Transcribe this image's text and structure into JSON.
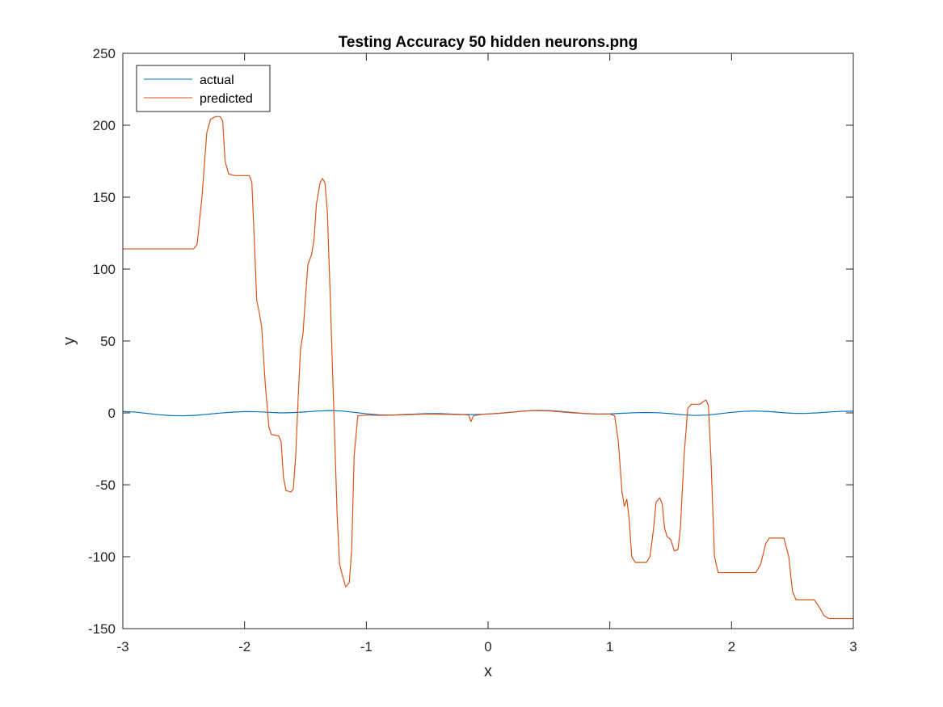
{
  "chart_data": {
    "type": "line",
    "title": "Testing Accuracy 50 hidden neurons.png",
    "xlabel": "x",
    "ylabel": "y",
    "xlim": [
      -3,
      3
    ],
    "ylim": [
      -150,
      250
    ],
    "xticks": [
      -3,
      -2,
      -1,
      0,
      1,
      2,
      3
    ],
    "yticks": [
      -150,
      -100,
      -50,
      0,
      50,
      100,
      150,
      200,
      250
    ],
    "grid": false,
    "legend_position": "top-left",
    "series": [
      {
        "name": "actual",
        "color": "#0072BD",
        "points": [
          [
            -3.0,
            0.99
          ],
          [
            -2.9,
            0.6
          ],
          [
            -2.8,
            -0.4
          ],
          [
            -2.7,
            -1.3
          ],
          [
            -2.6,
            -1.9
          ],
          [
            -2.5,
            -2.0
          ],
          [
            -2.4,
            -1.7
          ],
          [
            -2.3,
            -0.9
          ],
          [
            -2.2,
            -0.1
          ],
          [
            -2.1,
            0.5
          ],
          [
            -2.0,
            0.9
          ],
          [
            -1.9,
            0.8
          ],
          [
            -1.8,
            0.4
          ],
          [
            -1.7,
            0.0
          ],
          [
            -1.6,
            0.2
          ],
          [
            -1.5,
            0.7
          ],
          [
            -1.4,
            1.3
          ],
          [
            -1.3,
            1.6
          ],
          [
            -1.2,
            1.3
          ],
          [
            -1.1,
            0.4
          ],
          [
            -1.0,
            -0.6
          ],
          [
            -0.9,
            -1.3
          ],
          [
            -0.8,
            -1.5
          ],
          [
            -0.7,
            -1.2
          ],
          [
            -0.6,
            -0.8
          ],
          [
            -0.5,
            -0.5
          ],
          [
            -0.4,
            -0.5
          ],
          [
            -0.3,
            -0.8
          ],
          [
            -0.2,
            -1.1
          ],
          [
            -0.1,
            -1.1
          ],
          [
            0.0,
            -0.8
          ],
          [
            0.1,
            -0.2
          ],
          [
            0.2,
            0.6
          ],
          [
            0.3,
            1.3
          ],
          [
            0.4,
            1.7
          ],
          [
            0.5,
            1.6
          ],
          [
            0.6,
            1.0
          ],
          [
            0.7,
            0.2
          ],
          [
            0.8,
            -0.5
          ],
          [
            0.9,
            -0.8
          ],
          [
            1.0,
            -0.7
          ],
          [
            1.1,
            -0.3
          ],
          [
            1.2,
            0.1
          ],
          [
            1.3,
            0.3
          ],
          [
            1.4,
            0.1
          ],
          [
            1.5,
            -0.5
          ],
          [
            1.6,
            -1.3
          ],
          [
            1.7,
            -1.8
          ],
          [
            1.8,
            -1.5
          ],
          [
            1.9,
            -0.6
          ],
          [
            2.0,
            0.4
          ],
          [
            2.1,
            1.1
          ],
          [
            2.2,
            1.3
          ],
          [
            2.3,
            1.0
          ],
          [
            2.4,
            0.3
          ],
          [
            2.5,
            -0.3
          ],
          [
            2.6,
            -0.4
          ],
          [
            2.7,
            0.0
          ],
          [
            2.8,
            0.6
          ],
          [
            2.9,
            1.1
          ],
          [
            3.0,
            1.2
          ]
        ]
      },
      {
        "name": "predicted",
        "color": "#D95319",
        "points": [
          [
            -3.0,
            114
          ],
          [
            -2.42,
            114
          ],
          [
            -2.39,
            117
          ],
          [
            -2.35,
            150
          ],
          [
            -2.31,
            195
          ],
          [
            -2.28,
            204
          ],
          [
            -2.24,
            206
          ],
          [
            -2.2,
            206
          ],
          [
            -2.18,
            203
          ],
          [
            -2.16,
            175
          ],
          [
            -2.13,
            166
          ],
          [
            -2.08,
            165
          ],
          [
            -1.96,
            165
          ],
          [
            -1.94,
            160
          ],
          [
            -1.92,
            120
          ],
          [
            -1.9,
            78
          ],
          [
            -1.88,
            70
          ],
          [
            -1.86,
            60
          ],
          [
            -1.83,
            20
          ],
          [
            -1.8,
            -10
          ],
          [
            -1.78,
            -15
          ],
          [
            -1.72,
            -16
          ],
          [
            -1.7,
            -20
          ],
          [
            -1.68,
            -45
          ],
          [
            -1.66,
            -54
          ],
          [
            -1.62,
            -55
          ],
          [
            -1.6,
            -53
          ],
          [
            -1.58,
            -30
          ],
          [
            -1.56,
            10
          ],
          [
            -1.54,
            45
          ],
          [
            -1.52,
            55
          ],
          [
            -1.5,
            80
          ],
          [
            -1.48,
            103
          ],
          [
            -1.45,
            110
          ],
          [
            -1.43,
            120
          ],
          [
            -1.41,
            145
          ],
          [
            -1.38,
            160
          ],
          [
            -1.36,
            163
          ],
          [
            -1.34,
            160
          ],
          [
            -1.32,
            140
          ],
          [
            -1.3,
            90
          ],
          [
            -1.27,
            10
          ],
          [
            -1.24,
            -70
          ],
          [
            -1.22,
            -105
          ],
          [
            -1.19,
            -115
          ],
          [
            -1.17,
            -121
          ],
          [
            -1.14,
            -118
          ],
          [
            -1.12,
            -95
          ],
          [
            -1.1,
            -30
          ],
          [
            -1.07,
            -2
          ],
          [
            -1.0,
            -1.5
          ],
          [
            -0.9,
            -1.7
          ],
          [
            -0.7,
            -1.4
          ],
          [
            -0.5,
            -0.8
          ],
          [
            -0.2,
            -1.2
          ],
          [
            -0.16,
            -1.5
          ],
          [
            -0.14,
            -6
          ],
          [
            -0.12,
            -2
          ],
          [
            -0.05,
            -1
          ],
          [
            0.1,
            -0.3
          ],
          [
            0.3,
            1.3
          ],
          [
            0.4,
            1.7
          ],
          [
            0.5,
            1.4
          ],
          [
            0.7,
            0.0
          ],
          [
            0.9,
            -0.8
          ],
          [
            1.0,
            -0.8
          ],
          [
            1.04,
            -2
          ],
          [
            1.07,
            -20
          ],
          [
            1.1,
            -55
          ],
          [
            1.12,
            -65
          ],
          [
            1.14,
            -60
          ],
          [
            1.16,
            -75
          ],
          [
            1.18,
            -100
          ],
          [
            1.21,
            -104
          ],
          [
            1.3,
            -104
          ],
          [
            1.33,
            -100
          ],
          [
            1.36,
            -80
          ],
          [
            1.38,
            -62
          ],
          [
            1.41,
            -59
          ],
          [
            1.43,
            -63
          ],
          [
            1.45,
            -80
          ],
          [
            1.47,
            -86
          ],
          [
            1.5,
            -88
          ],
          [
            1.53,
            -96
          ],
          [
            1.56,
            -95
          ],
          [
            1.58,
            -80
          ],
          [
            1.61,
            -30
          ],
          [
            1.64,
            3
          ],
          [
            1.67,
            6
          ],
          [
            1.74,
            6
          ],
          [
            1.77,
            8
          ],
          [
            1.79,
            9
          ],
          [
            1.81,
            5
          ],
          [
            1.83,
            -30
          ],
          [
            1.86,
            -100
          ],
          [
            1.89,
            -111
          ],
          [
            2.2,
            -111
          ],
          [
            2.24,
            -105
          ],
          [
            2.28,
            -91
          ],
          [
            2.31,
            -87
          ],
          [
            2.43,
            -87
          ],
          [
            2.47,
            -100
          ],
          [
            2.5,
            -124
          ],
          [
            2.53,
            -130
          ],
          [
            2.68,
            -130
          ],
          [
            2.72,
            -135
          ],
          [
            2.76,
            -141
          ],
          [
            2.8,
            -143
          ],
          [
            3.0,
            -143
          ]
        ]
      }
    ]
  }
}
